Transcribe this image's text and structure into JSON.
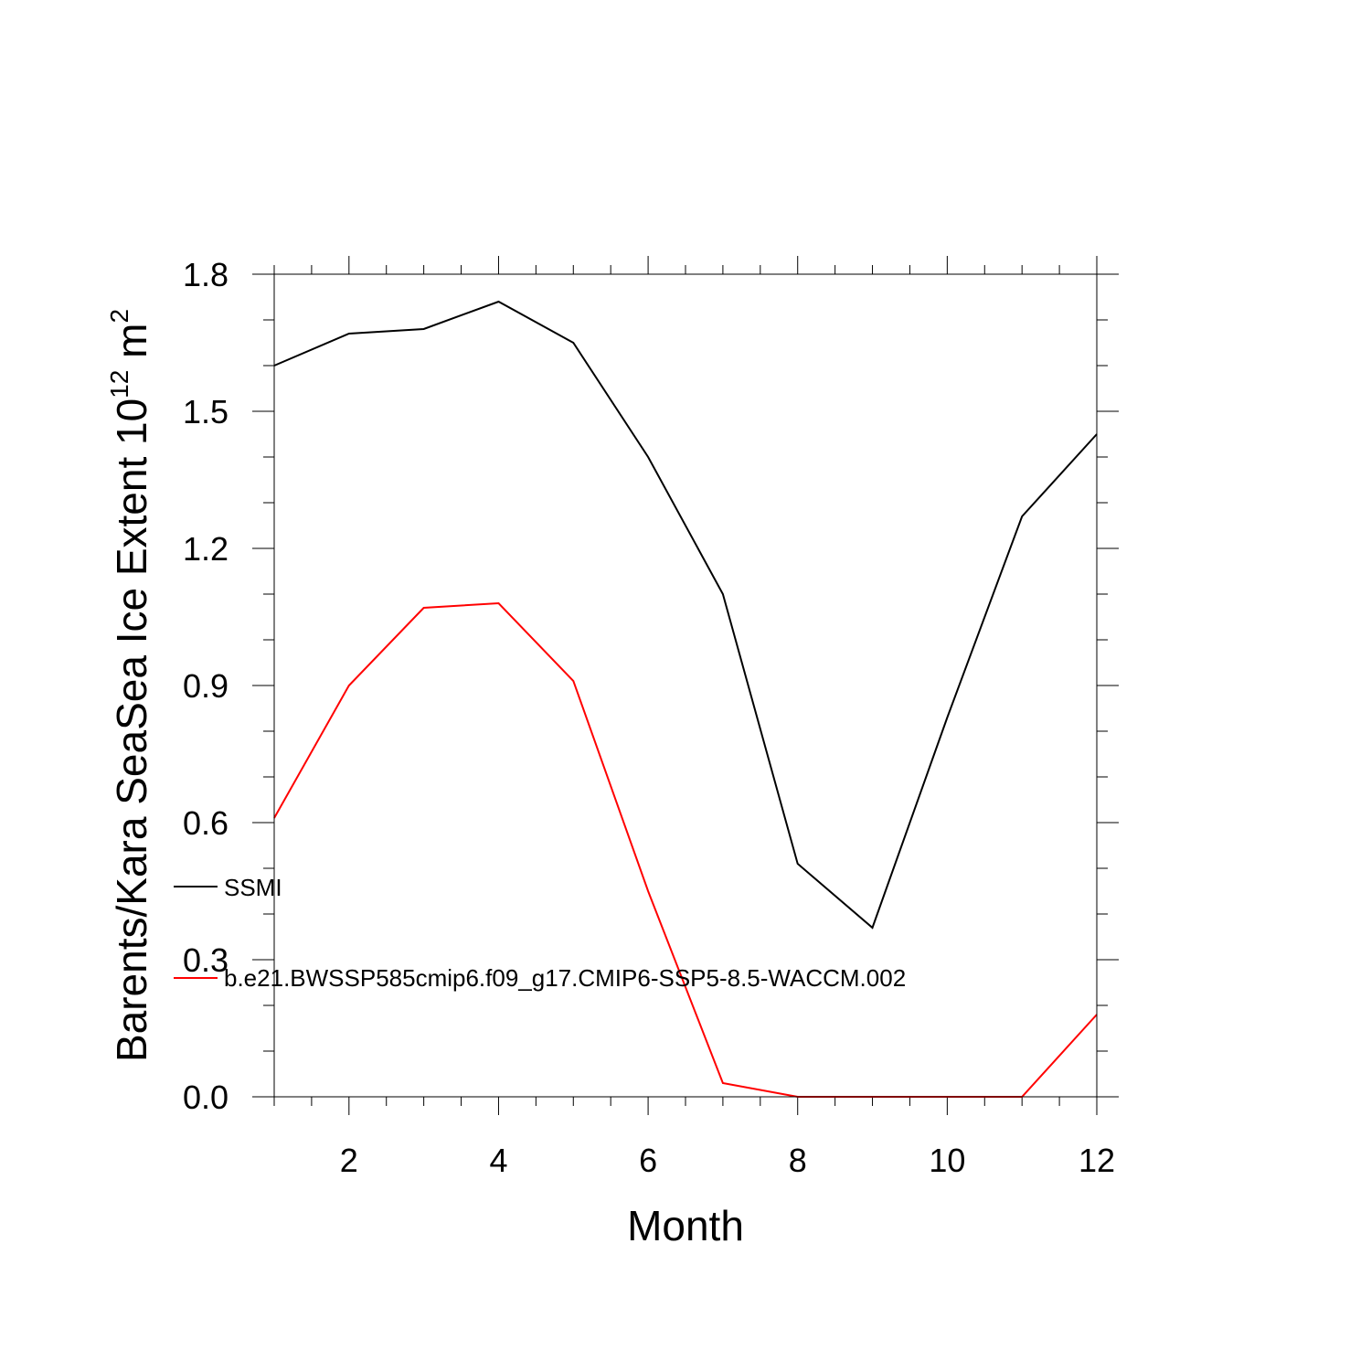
{
  "chart_data": {
    "type": "line",
    "title": "",
    "xlabel": "Month",
    "ylabel_base": "Barents/Kara SeaSea Ice Extent 10",
    "ylabel_exponent": "12",
    "ylabel_unit": " m",
    "ylabel_unit_exponent": "2",
    "xlim": [
      1,
      12
    ],
    "ylim": [
      0,
      1.8
    ],
    "x_ticks": [
      "2",
      "4",
      "6",
      "8",
      "10",
      "12"
    ],
    "y_ticks": [
      "0.0",
      "0.3",
      "0.6",
      "0.9",
      "1.2",
      "1.5",
      "1.8"
    ],
    "x": [
      1,
      2,
      3,
      4,
      5,
      6,
      7,
      8,
      9,
      10,
      11,
      12
    ],
    "series": [
      {
        "name": "SSMI",
        "color": "#000000",
        "values": [
          1.6,
          1.67,
          1.68,
          1.74,
          1.65,
          1.4,
          1.1,
          0.51,
          0.37,
          0.83,
          1.27,
          1.45
        ]
      },
      {
        "name": "b.e21.BWSSP585cmip6.f09_g17.CMIP6-SSP5-8.5-WACCM.002",
        "color": "#ff0000",
        "values": [
          0.61,
          0.9,
          1.07,
          1.08,
          0.91,
          0.45,
          0.03,
          0.0,
          0.0,
          0.0,
          0.0,
          0.18
        ]
      }
    ],
    "legend_position": "inside-left",
    "grid": false
  }
}
